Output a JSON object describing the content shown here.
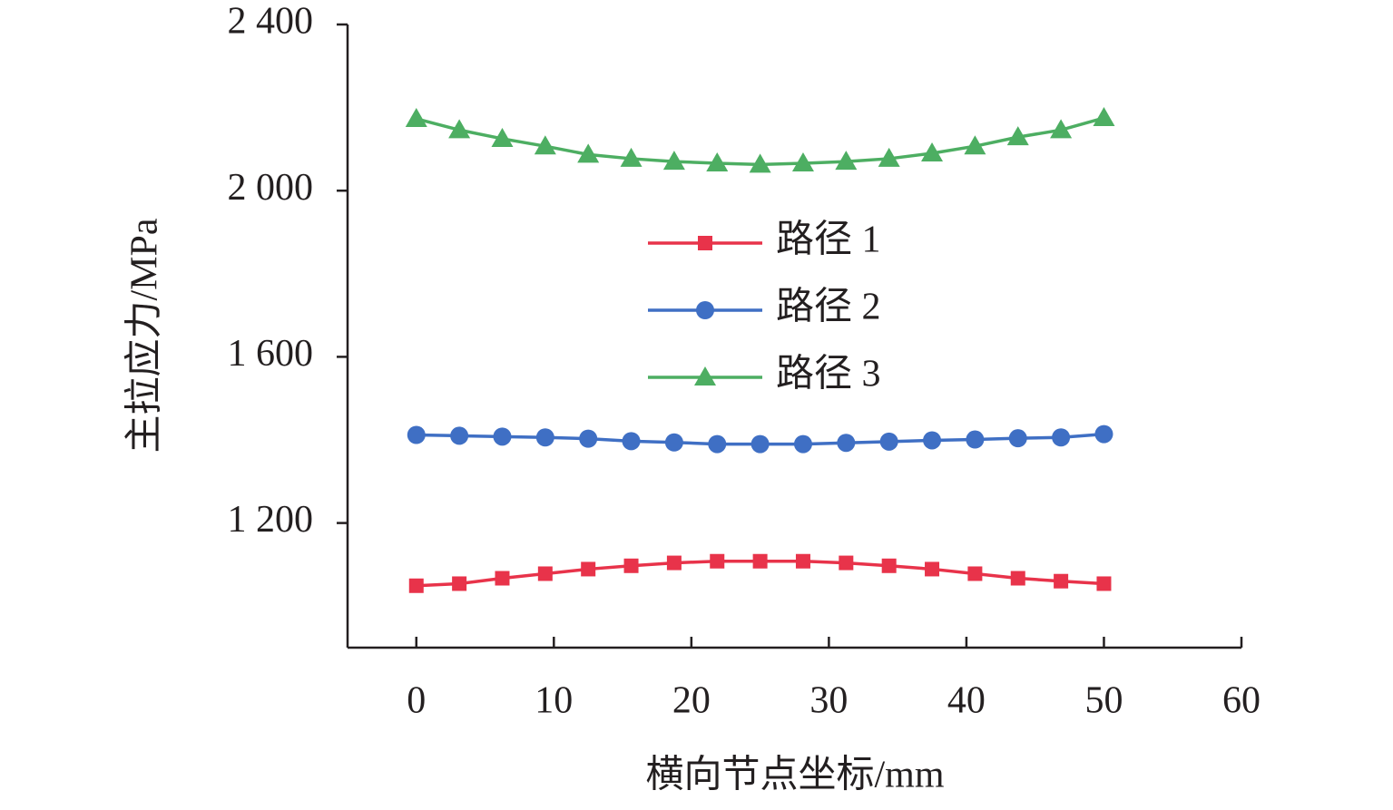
{
  "chart_data": {
    "type": "line",
    "x_label": "横向节点坐标/mm",
    "y_label": "主拉应力/MPa",
    "x": [
      0,
      3.125,
      6.25,
      9.375,
      12.5,
      15.625,
      18.75,
      21.875,
      25,
      28.125,
      31.25,
      34.375,
      37.5,
      40.625,
      43.75,
      46.875,
      50
    ],
    "series": [
      {
        "name": "路径 1",
        "color": "#e8334a",
        "marker": "square",
        "values": [
          1049,
          1054,
          1067,
          1078,
          1089,
          1097,
          1104,
          1108,
          1108,
          1108,
          1104,
          1097,
          1089,
          1078,
          1067,
          1060,
          1054
        ]
      },
      {
        "name": "路径 2",
        "color": "#3f6fc4",
        "marker": "circle",
        "values": [
          1412,
          1410,
          1408,
          1406,
          1403,
          1397,
          1394,
          1390,
          1390,
          1390,
          1393,
          1396,
          1399,
          1401,
          1404,
          1406,
          1414
        ]
      },
      {
        "name": "路径 3",
        "color": "#4dae62",
        "marker": "triangle",
        "values": [
          2173,
          2146,
          2125,
          2107,
          2087,
          2077,
          2070,
          2066,
          2063,
          2066,
          2070,
          2077,
          2090,
          2107,
          2129,
          2146,
          2175
        ]
      }
    ],
    "xlim": [
      -5,
      60
    ],
    "xticks": [
      0,
      10,
      20,
      30,
      40,
      50,
      60
    ],
    "ylim": [
      900,
      2400
    ],
    "yticks": [
      {
        "value": 1200,
        "label": "1 200"
      },
      {
        "value": 1600,
        "label": "1 600"
      },
      {
        "value": 2000,
        "label": "2 000"
      },
      {
        "value": 2400,
        "label": "2 400"
      }
    ],
    "grid": false,
    "legend": "center"
  }
}
